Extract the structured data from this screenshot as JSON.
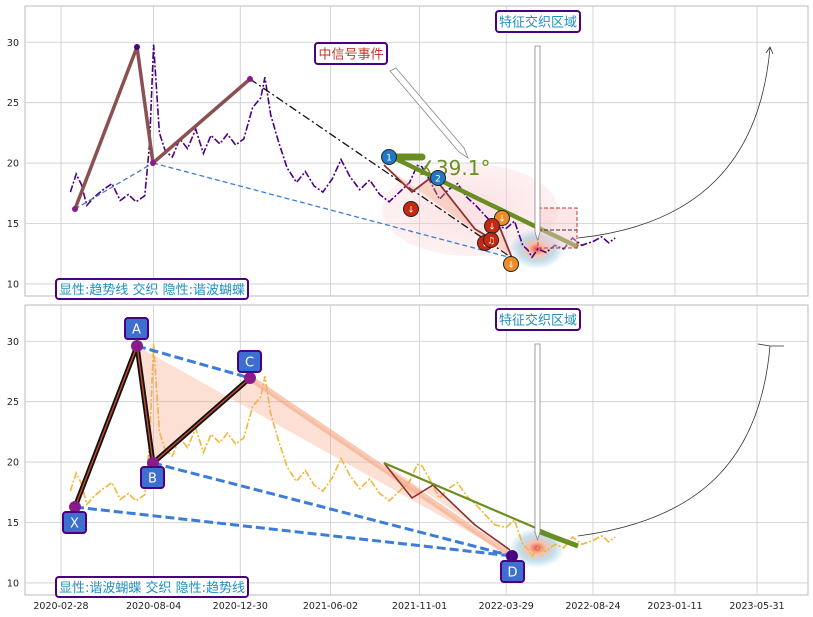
{
  "colors": {
    "grid": "#cccccc",
    "frame": "#bbbbbb",
    "price_top": "#4b0082",
    "price_bottom": "#f0b63a",
    "pattern_line": "#8b5050",
    "trend_blue": "#3b7dd8",
    "trend_green": "#6b8e23",
    "box_border": "#4b0082",
    "box_text": "#1f8fc0",
    "event_text": "#c0392b",
    "point_label_bg": "#3d6fd1"
  },
  "x_ticks": [
    "2020-02-28",
    "2020-08-04",
    "2020-12-30",
    "2021-06-02",
    "2021-11-01",
    "2022-03-29",
    "2022-08-24",
    "2023-01-11",
    "2023-05-31"
  ],
  "top_panel": {
    "y_ticks": [
      "10",
      "15",
      "20",
      "25",
      "30"
    ],
    "title_box": "特征交织区域",
    "event_box": "中信号事件",
    "legend_box": "显性:趋势线 交织 隐性:谐波蝴蝶",
    "angle_label": "∡39.1°",
    "signal_markers": [
      "1",
      "2",
      "↓",
      "↓",
      "↓",
      "↓",
      "♫",
      "↓"
    ]
  },
  "bottom_panel": {
    "y_ticks": [
      "10",
      "15",
      "20",
      "25",
      "30"
    ],
    "title_box": "特征交织区域",
    "legend_box": "显性:谐波蝴蝶 交织 隐性:趋势线",
    "points": [
      "X",
      "A",
      "B",
      "C",
      "D"
    ]
  },
  "chart_data": [
    {
      "type": "line",
      "panel": "top",
      "x_tick_labels": [
        "2020-02-28",
        "2020-08-04",
        "2020-12-30",
        "2021-06-02",
        "2021-11-01",
        "2022-03-29",
        "2022-08-24",
        "2023-01-11",
        "2023-05-31"
      ],
      "ylim": [
        9,
        33
      ],
      "series": [
        {
          "values": [
            [
              "2020-03-15",
              17.6
            ],
            [
              "2020-03-25",
              19.1
            ],
            [
              "2020-04-03",
              18.2
            ],
            [
              "2020-04-12",
              16.5
            ],
            [
              "2020-04-25",
              17.2
            ],
            [
              "2020-05-10",
              17.8
            ],
            [
              "2020-05-25",
              18.3
            ],
            [
              "2020-06-08",
              16.9
            ],
            [
              "2020-06-22",
              17.4
            ],
            [
              "2020-07-05",
              16.8
            ],
            [
              "2020-07-20",
              17.3
            ],
            [
              "2020-07-28",
              21.5
            ],
            [
              "2020-08-04",
              29.8
            ],
            [
              "2020-08-14",
              22.5
            ],
            [
              "2020-08-24",
              21.0
            ],
            [
              "2020-09-05",
              20.5
            ],
            [
              "2020-09-18",
              22.0
            ],
            [
              "2020-10-01",
              21.2
            ],
            [
              "2020-10-15",
              22.8
            ],
            [
              "2020-10-28",
              20.8
            ],
            [
              "2020-11-10",
              22.3
            ],
            [
              "2020-11-25",
              21.6
            ],
            [
              "2020-12-08",
              22.4
            ],
            [
              "2020-12-22",
              21.5
            ],
            [
              "2021-01-05",
              22.0
            ],
            [
              "2021-01-20",
              24.6
            ],
            [
              "2021-02-03",
              25.4
            ],
            [
              "2021-02-10",
              27.1
            ],
            [
              "2021-02-20",
              24.0
            ],
            [
              "2021-03-05",
              21.8
            ],
            [
              "2021-03-20",
              19.6
            ],
            [
              "2021-04-05",
              18.4
            ],
            [
              "2021-04-20",
              19.3
            ],
            [
              "2021-05-05",
              18.1
            ],
            [
              "2021-05-20",
              17.6
            ],
            [
              "2021-06-05",
              18.7
            ],
            [
              "2021-06-20",
              20.3
            ],
            [
              "2021-07-05",
              18.9
            ],
            [
              "2021-07-22",
              17.8
            ],
            [
              "2021-08-08",
              18.6
            ],
            [
              "2021-08-25",
              17.4
            ],
            [
              "2021-09-10",
              16.8
            ],
            [
              "2021-09-28",
              17.6
            ],
            [
              "2021-10-15",
              18.4
            ],
            [
              "2021-10-28",
              19.8
            ],
            [
              "2021-11-05",
              19.7
            ],
            [
              "2021-11-18",
              18.6
            ],
            [
              "2021-12-05",
              17.0
            ],
            [
              "2021-12-20",
              17.8
            ],
            [
              "2022-01-05",
              18.3
            ],
            [
              "2022-01-20",
              17.2
            ],
            [
              "2022-02-05",
              16.5
            ],
            [
              "2022-02-22",
              15.6
            ],
            [
              "2022-03-10",
              14.8
            ],
            [
              "2022-03-29",
              14.6
            ],
            [
              "2022-04-12",
              15.2
            ],
            [
              "2022-04-26",
              13.2
            ],
            [
              "2022-05-05",
              12.8
            ],
            [
              "2022-05-12",
              12.2
            ],
            [
              "2022-05-22",
              12.9
            ],
            [
              "2022-06-05",
              12.6
            ],
            [
              "2022-06-20",
              13.2
            ],
            [
              "2022-07-05",
              12.9
            ],
            [
              "2022-07-20",
              13.8
            ],
            [
              "2022-08-05",
              13.2
            ],
            [
              "2022-08-24",
              13.5
            ],
            [
              "2022-09-08",
              13.9
            ],
            [
              "2022-09-20",
              13.4
            ],
            [
              "2022-10-01",
              13.8
            ]
          ]
        }
      ]
    },
    {
      "type": "line",
      "panel": "bottom",
      "x_tick_labels": [
        "2020-02-28",
        "2020-08-04",
        "2020-12-30",
        "2021-06-02",
        "2021-11-01",
        "2022-03-29",
        "2022-08-24",
        "2023-01-11",
        "2023-05-31"
      ],
      "ylim": [
        9,
        33
      ],
      "harmonic_points": {
        "X": 16.4,
        "A": 29.8,
        "B": 20.1,
        "C": 27.1,
        "D": 12.2
      },
      "series": [
        {
          "values": [
            [
              "2020-03-15",
              17.6
            ],
            [
              "2020-03-25",
              19.1
            ],
            [
              "2020-04-03",
              18.2
            ],
            [
              "2020-04-12",
              16.5
            ],
            [
              "2020-04-25",
              17.2
            ],
            [
              "2020-05-10",
              17.8
            ],
            [
              "2020-05-25",
              18.3
            ],
            [
              "2020-06-08",
              16.9
            ],
            [
              "2020-06-22",
              17.4
            ],
            [
              "2020-07-05",
              16.8
            ],
            [
              "2020-07-20",
              17.3
            ],
            [
              "2020-07-28",
              21.5
            ],
            [
              "2020-08-04",
              29.8
            ],
            [
              "2020-08-14",
              22.5
            ],
            [
              "2020-08-24",
              21.0
            ],
            [
              "2020-09-05",
              20.5
            ],
            [
              "2020-09-18",
              22.0
            ],
            [
              "2020-10-01",
              21.2
            ],
            [
              "2020-10-15",
              22.8
            ],
            [
              "2020-10-28",
              20.8
            ],
            [
              "2020-11-10",
              22.3
            ],
            [
              "2020-11-25",
              21.6
            ],
            [
              "2020-12-08",
              22.4
            ],
            [
              "2020-12-22",
              21.5
            ],
            [
              "2021-01-05",
              22.0
            ],
            [
              "2021-01-20",
              24.6
            ],
            [
              "2021-02-03",
              25.4
            ],
            [
              "2021-02-10",
              27.1
            ],
            [
              "2021-02-20",
              24.0
            ],
            [
              "2021-03-05",
              21.8
            ],
            [
              "2021-03-20",
              19.6
            ],
            [
              "2021-04-05",
              18.4
            ],
            [
              "2021-04-20",
              19.3
            ],
            [
              "2021-05-05",
              18.1
            ],
            [
              "2021-05-20",
              17.6
            ],
            [
              "2021-06-05",
              18.7
            ],
            [
              "2021-06-20",
              20.3
            ],
            [
              "2021-07-05",
              18.9
            ],
            [
              "2021-07-22",
              17.8
            ],
            [
              "2021-08-08",
              18.6
            ],
            [
              "2021-08-25",
              17.4
            ],
            [
              "2021-09-10",
              16.8
            ],
            [
              "2021-09-28",
              17.6
            ],
            [
              "2021-10-15",
              18.4
            ],
            [
              "2021-10-28",
              19.8
            ],
            [
              "2021-11-05",
              19.7
            ],
            [
              "2021-11-18",
              18.6
            ],
            [
              "2021-12-05",
              17.0
            ],
            [
              "2021-12-20",
              17.8
            ],
            [
              "2022-01-05",
              18.3
            ],
            [
              "2022-01-20",
              17.2
            ],
            [
              "2022-02-05",
              16.5
            ],
            [
              "2022-02-22",
              15.6
            ],
            [
              "2022-03-10",
              14.8
            ],
            [
              "2022-03-29",
              14.6
            ],
            [
              "2022-04-12",
              15.2
            ],
            [
              "2022-04-26",
              13.2
            ],
            [
              "2022-05-05",
              12.8
            ],
            [
              "2022-05-12",
              12.2
            ],
            [
              "2022-05-22",
              12.9
            ],
            [
              "2022-06-05",
              12.6
            ],
            [
              "2022-06-20",
              13.2
            ],
            [
              "2022-07-05",
              12.9
            ],
            [
              "2022-07-20",
              13.8
            ],
            [
              "2022-08-05",
              13.2
            ],
            [
              "2022-08-24",
              13.5
            ],
            [
              "2022-09-08",
              13.9
            ],
            [
              "2022-09-20",
              13.4
            ],
            [
              "2022-10-01",
              13.8
            ]
          ]
        }
      ]
    }
  ]
}
